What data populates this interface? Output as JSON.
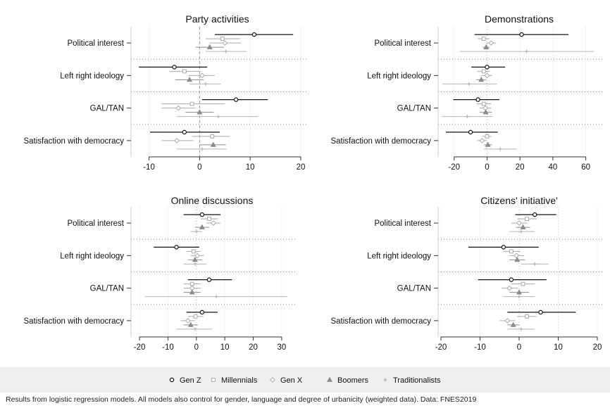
{
  "note": "Results from logistic regression models. All models also control for gender, language and degree of urbanicity (weighted data). Data: FNES2019",
  "chart_data": [
    {
      "type": "scatter",
      "title": "Party activities",
      "xlim": [
        -13,
        20
      ],
      "xticks": [
        -10,
        0,
        10,
        20
      ],
      "categories": [
        "Political interest",
        "Left right ideology",
        "GAL/TAN",
        "Satisfaction with democracy"
      ],
      "series": [
        {
          "name": "Gen Z",
          "points": [
            {
              "x": 10.8,
              "lo": 3,
              "hi": 18.5
            },
            {
              "x": -5,
              "lo": -12,
              "hi": 1.5
            },
            {
              "x": 7.2,
              "lo": 0.5,
              "hi": 13.5
            },
            {
              "x": -3,
              "lo": -9.8,
              "hi": 4
            }
          ]
        },
        {
          "name": "Millennials",
          "points": [
            {
              "x": 4.5,
              "lo": 1.2,
              "hi": 8
            },
            {
              "x": -3,
              "lo": -6,
              "hi": 0.2
            },
            {
              "x": -1.5,
              "lo": -7.5,
              "hi": 5
            },
            {
              "x": 2.5,
              "lo": -1.5,
              "hi": 6
            }
          ]
        },
        {
          "name": "Gen X",
          "points": [
            {
              "x": 5,
              "lo": 2,
              "hi": 8.2
            },
            {
              "x": 0.5,
              "lo": -2.2,
              "hi": 3
            },
            {
              "x": -4.2,
              "lo": -7.5,
              "hi": -0.8
            },
            {
              "x": -4.5,
              "lo": -7.5,
              "hi": -1.2
            }
          ]
        },
        {
          "name": "Boomers",
          "points": [
            {
              "x": 2,
              "lo": -0.8,
              "hi": 4.8
            },
            {
              "x": -2,
              "lo": -4.8,
              "hi": 0.8
            },
            {
              "x": 0,
              "lo": -2.8,
              "hi": 2.8
            },
            {
              "x": 2.7,
              "lo": 0,
              "hi": 5.2
            }
          ]
        },
        {
          "name": "Traditionalists",
          "points": [
            {
              "x": 5.2,
              "lo": 1.2,
              "hi": 9.3
            },
            {
              "x": 1.2,
              "lo": -2,
              "hi": 4.2
            },
            {
              "x": 3.7,
              "lo": -4.5,
              "hi": 11.6
            },
            {
              "x": 0.5,
              "lo": -4.5,
              "hi": 5.3
            }
          ]
        }
      ]
    },
    {
      "type": "scatter",
      "title": "Demonstrations",
      "xlim": [
        -28,
        67
      ],
      "xticks": [
        -20,
        0,
        20,
        40,
        60
      ],
      "categories": [
        "Political interest",
        "Left right ideology",
        "GAL/TAN",
        "Satisfaction with democracy"
      ],
      "series": [
        {
          "name": "Gen Z",
          "points": [
            {
              "x": 21,
              "lo": -7.5,
              "hi": 49.5
            },
            {
              "x": 0,
              "lo": -9.5,
              "hi": 11
            },
            {
              "x": -5.5,
              "lo": -20.5,
              "hi": 7.5
            },
            {
              "x": -10,
              "lo": -25,
              "hi": 6.5
            }
          ]
        },
        {
          "name": "Millennials",
          "points": [
            {
              "x": -2,
              "lo": -5.5,
              "hi": 1.5
            },
            {
              "x": -2,
              "lo": -6,
              "hi": 1.8
            },
            {
              "x": -2,
              "lo": -6.5,
              "hi": 2.5
            },
            {
              "x": 0,
              "lo": -2.8,
              "hi": 2.5
            }
          ]
        },
        {
          "name": "Gen X",
          "points": [
            {
              "x": 2.5,
              "lo": -0.5,
              "hi": 5.5
            },
            {
              "x": 0,
              "lo": -3.5,
              "hi": 3
            },
            {
              "x": -1,
              "lo": -4.5,
              "hi": 2.5
            },
            {
              "x": -3,
              "lo": -6,
              "hi": -0.3
            }
          ]
        },
        {
          "name": "Boomers",
          "points": [
            {
              "x": -0.5,
              "lo": -2.5,
              "hi": 1.5
            },
            {
              "x": -3.5,
              "lo": -6.5,
              "hi": -0.5
            },
            {
              "x": -0.8,
              "lo": -4.5,
              "hi": 3
            },
            {
              "x": 0.5,
              "lo": -1.8,
              "hi": 3
            }
          ]
        },
        {
          "name": "Traditionalists",
          "points": [
            {
              "x": 24,
              "lo": -16.5,
              "hi": 65
            },
            {
              "x": -11,
              "lo": -27,
              "hi": 6
            },
            {
              "x": -12,
              "lo": -27.5,
              "hi": 3.5
            },
            {
              "x": 8,
              "lo": -2,
              "hi": 18
            }
          ]
        }
      ]
    },
    {
      "type": "scatter",
      "title": "Online discussions",
      "xlim": [
        -22,
        33
      ],
      "xticks": [
        -20,
        -10,
        0,
        10,
        20,
        30
      ],
      "categories": [
        "Political interest",
        "Left right ideology",
        "GAL/TAN",
        "Satisfaction with democracy"
      ],
      "series": [
        {
          "name": "Gen Z",
          "points": [
            {
              "x": 2,
              "lo": -4.5,
              "hi": 8.5
            },
            {
              "x": -7,
              "lo": -15,
              "hi": 1
            },
            {
              "x": 4.5,
              "lo": -3,
              "hi": 12.5
            },
            {
              "x": 2,
              "lo": -3.5,
              "hi": 7.5
            }
          ]
        },
        {
          "name": "Millennials",
          "points": [
            {
              "x": 4.5,
              "lo": 1.5,
              "hi": 7.5
            },
            {
              "x": -1,
              "lo": -3.5,
              "hi": 1.5
            },
            {
              "x": -1.5,
              "lo": -4.5,
              "hi": 1.5
            },
            {
              "x": -0.3,
              "lo": -3,
              "hi": 2.5
            }
          ]
        },
        {
          "name": "Gen X",
          "points": [
            {
              "x": 6,
              "lo": 3.5,
              "hi": 8.5
            },
            {
              "x": 0.3,
              "lo": -2,
              "hi": 2.6
            },
            {
              "x": -1.5,
              "lo": -4.5,
              "hi": 1.5
            },
            {
              "x": -3,
              "lo": -5.5,
              "hi": -0.5
            }
          ]
        },
        {
          "name": "Boomers",
          "points": [
            {
              "x": 2,
              "lo": -0.5,
              "hi": 4.5
            },
            {
              "x": -0.5,
              "lo": -3,
              "hi": 2
            },
            {
              "x": -1.5,
              "lo": -4.5,
              "hi": 1.5
            },
            {
              "x": -2,
              "lo": -4.5,
              "hi": 0.5
            }
          ]
        },
        {
          "name": "Traditionalists",
          "points": [
            {
              "x": 0,
              "lo": -2,
              "hi": 2
            },
            {
              "x": -0.5,
              "lo": -4.5,
              "hi": 3.5
            },
            {
              "x": 7,
              "lo": -18,
              "hi": 32
            },
            {
              "x": -0.5,
              "lo": -7,
              "hi": 5.5
            }
          ]
        }
      ]
    },
    {
      "type": "scatter",
      "title": "Citizens' initiative'",
      "xlim": [
        -20,
        20
      ],
      "xticks": [
        -20,
        -10,
        0,
        10,
        20
      ],
      "categories": [
        "Political interest",
        "Left right ideology",
        "GAL/TAN",
        "Satisfaction with democracy"
      ],
      "series": [
        {
          "name": "Gen Z",
          "points": [
            {
              "x": 4,
              "lo": -1,
              "hi": 9.5
            },
            {
              "x": -4,
              "lo": -13,
              "hi": 5
            },
            {
              "x": -2,
              "lo": -10.5,
              "hi": 7
            },
            {
              "x": 5.5,
              "lo": -3,
              "hi": 14.5
            }
          ]
        },
        {
          "name": "Millennials",
          "points": [
            {
              "x": 2,
              "lo": -0.5,
              "hi": 4.5
            },
            {
              "x": -2,
              "lo": -4,
              "hi": 0.3
            },
            {
              "x": 1,
              "lo": -2,
              "hi": 4
            },
            {
              "x": 2,
              "lo": -0.5,
              "hi": 4.5
            }
          ]
        },
        {
          "name": "Gen X",
          "points": [
            {
              "x": 0,
              "lo": -2,
              "hi": 2
            },
            {
              "x": -0.7,
              "lo": -2.5,
              "hi": 1.3
            },
            {
              "x": -2.5,
              "lo": -4.5,
              "hi": -0.3
            },
            {
              "x": -3,
              "lo": -5,
              "hi": -1
            }
          ]
        },
        {
          "name": "Boomers",
          "points": [
            {
              "x": 1,
              "lo": -0.8,
              "hi": 2.8
            },
            {
              "x": -0.5,
              "lo": -2.5,
              "hi": 1.5
            },
            {
              "x": 0,
              "lo": -2.5,
              "hi": 2.5
            },
            {
              "x": -1.5,
              "lo": -3,
              "hi": 0
            }
          ]
        },
        {
          "name": "Traditionalists",
          "points": [
            {
              "x": 0.5,
              "lo": -2.5,
              "hi": 4
            },
            {
              "x": 4,
              "lo": 0.5,
              "hi": 7.5
            },
            {
              "x": 0,
              "lo": -4,
              "hi": 4
            },
            {
              "x": 0.5,
              "lo": -3,
              "hi": 4
            }
          ]
        }
      ]
    }
  ],
  "legend": {
    "placement": "bottom",
    "items": [
      {
        "label": "Gen Z",
        "marker": "circle"
      },
      {
        "label": "Millennials",
        "marker": "square"
      },
      {
        "label": "Gen X",
        "marker": "diamond"
      },
      {
        "label": "Boomers",
        "marker": "triangle"
      },
      {
        "label": "Traditionalists",
        "marker": "plus"
      }
    ]
  }
}
